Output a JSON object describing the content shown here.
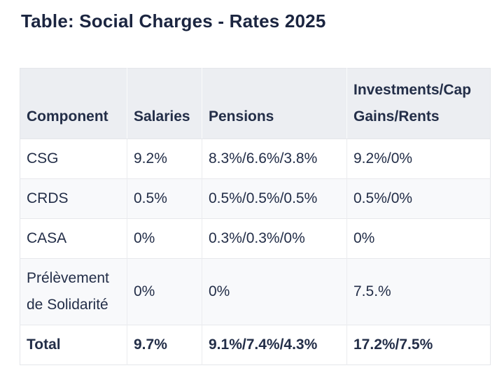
{
  "page": {
    "title": "Table: Social Charges - Rates 2025"
  },
  "table": {
    "headers": [
      "Component",
      "Salaries",
      "Pensions",
      "Investments/Cap Gains/Rents"
    ],
    "rows": [
      [
        "CSG",
        "9.2%",
        "8.3%/6.6%/3.8%",
        "9.2%/0%"
      ],
      [
        "CRDS",
        "0.5%",
        "0.5%/0.5%/0.5%",
        "0.5%/0%"
      ],
      [
        "CASA",
        "0%",
        "0.3%/0.3%/0%",
        "0%"
      ],
      [
        "Prélèvement de Solidarité",
        "0%",
        "0%",
        "7.5.%"
      ],
      [
        "Total",
        "9.7%",
        "9.1%/7.4%/4.3%",
        "17.2%/7.5%"
      ]
    ]
  },
  "colors": {
    "title_text": "#1b2540",
    "body_text": "#232e48",
    "header_bg": "#eceef2",
    "stripe_bg": "#f8f9fb",
    "border": "#e4e6ea"
  }
}
